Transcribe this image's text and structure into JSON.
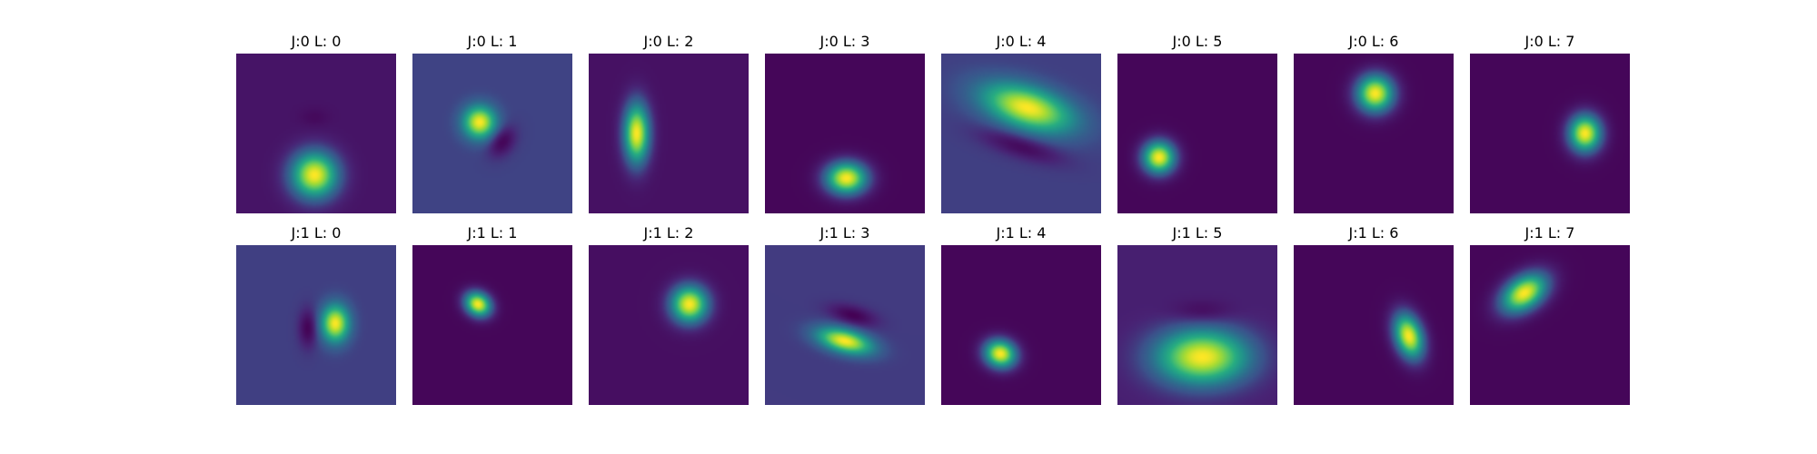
{
  "chart_data": {
    "type": "heatmap",
    "colormap": "viridis",
    "panels": [
      {
        "title": "J:0 L: 0",
        "background": 0.07,
        "blobs": [
          {
            "cx": 0.49,
            "cy": 0.76,
            "sx": 0.1,
            "sy": 0.1,
            "theta": 0,
            "amp": 0.93
          },
          {
            "cx": 0.49,
            "cy": 0.4,
            "sx": 0.06,
            "sy": 0.04,
            "theta": 0,
            "amp": -0.04
          }
        ]
      },
      {
        "title": "J:0 L: 1",
        "background": 0.21,
        "blobs": [
          {
            "cx": 0.42,
            "cy": 0.43,
            "sx": 0.07,
            "sy": 0.07,
            "theta": 0,
            "amp": 0.79
          },
          {
            "cx": 0.56,
            "cy": 0.55,
            "sx": 0.05,
            "sy": 0.07,
            "theta": 0.6,
            "amp": -0.21
          }
        ]
      },
      {
        "title": "J:0 L: 2",
        "background": 0.06,
        "blobs": [
          {
            "cx": 0.3,
            "cy": 0.5,
            "sx": 0.055,
            "sy": 0.13,
            "theta": 0,
            "amp": 0.94
          }
        ]
      },
      {
        "title": "J:0 L: 3",
        "background": 0.02,
        "blobs": [
          {
            "cx": 0.51,
            "cy": 0.78,
            "sx": 0.09,
            "sy": 0.07,
            "theta": 0,
            "amp": 0.98
          }
        ]
      },
      {
        "title": "J:0 L: 4",
        "background": 0.2,
        "blobs": [
          {
            "cx": 0.54,
            "cy": 0.34,
            "sx": 0.2,
            "sy": 0.09,
            "theta": 0.3,
            "amp": 0.8
          },
          {
            "cx": 0.5,
            "cy": 0.58,
            "sx": 0.18,
            "sy": 0.05,
            "theta": 0.3,
            "amp": -0.18
          }
        ]
      },
      {
        "title": "J:0 L: 5",
        "background": 0.02,
        "blobs": [
          {
            "cx": 0.26,
            "cy": 0.65,
            "sx": 0.07,
            "sy": 0.07,
            "theta": 0,
            "amp": 0.98
          }
        ]
      },
      {
        "title": "J:0 L: 6",
        "background": 0.02,
        "blobs": [
          {
            "cx": 0.51,
            "cy": 0.25,
            "sx": 0.08,
            "sy": 0.08,
            "theta": 0,
            "amp": 0.98
          }
        ]
      },
      {
        "title": "J:0 L: 7",
        "background": 0.02,
        "blobs": [
          {
            "cx": 0.72,
            "cy": 0.5,
            "sx": 0.07,
            "sy": 0.08,
            "theta": 0,
            "amp": 0.98
          }
        ]
      },
      {
        "title": "J:1 L: 0",
        "background": 0.2,
        "blobs": [
          {
            "cx": 0.62,
            "cy": 0.49,
            "sx": 0.06,
            "sy": 0.08,
            "theta": 0,
            "amp": 0.8
          },
          {
            "cx": 0.45,
            "cy": 0.52,
            "sx": 0.04,
            "sy": 0.08,
            "theta": 0,
            "amp": -0.2
          }
        ]
      },
      {
        "title": "J:1 L: 1",
        "background": 0.02,
        "blobs": [
          {
            "cx": 0.41,
            "cy": 0.37,
            "sx": 0.06,
            "sy": 0.05,
            "theta": 0.6,
            "amp": 0.98
          }
        ]
      },
      {
        "title": "J:1 L: 2",
        "background": 0.05,
        "blobs": [
          {
            "cx": 0.63,
            "cy": 0.37,
            "sx": 0.08,
            "sy": 0.08,
            "theta": 0,
            "amp": 0.95
          }
        ]
      },
      {
        "title": "J:1 L: 3",
        "background": 0.19,
        "blobs": [
          {
            "cx": 0.5,
            "cy": 0.6,
            "sx": 0.12,
            "sy": 0.05,
            "theta": 0.25,
            "amp": 0.81
          },
          {
            "cx": 0.55,
            "cy": 0.44,
            "sx": 0.1,
            "sy": 0.04,
            "theta": 0.25,
            "amp": -0.19
          }
        ]
      },
      {
        "title": "J:1 L: 4",
        "background": 0.02,
        "blobs": [
          {
            "cx": 0.37,
            "cy": 0.68,
            "sx": 0.07,
            "sy": 0.06,
            "theta": 0.3,
            "amp": 0.98
          }
        ]
      },
      {
        "title": "J:1 L: 5",
        "background": 0.11,
        "blobs": [
          {
            "cx": 0.53,
            "cy": 0.7,
            "sx": 0.2,
            "sy": 0.12,
            "theta": 0,
            "amp": 0.89
          },
          {
            "cx": 0.53,
            "cy": 0.42,
            "sx": 0.13,
            "sy": 0.05,
            "theta": 0,
            "amp": -0.1
          }
        ]
      },
      {
        "title": "J:1 L: 6",
        "background": 0.02,
        "blobs": [
          {
            "cx": 0.72,
            "cy": 0.57,
            "sx": 0.06,
            "sy": 0.1,
            "theta": -0.3,
            "amp": 0.98
          }
        ]
      },
      {
        "title": "J:1 L: 7",
        "background": 0.02,
        "blobs": [
          {
            "cx": 0.34,
            "cy": 0.3,
            "sx": 0.11,
            "sy": 0.07,
            "theta": -0.6,
            "amp": 0.98
          }
        ]
      }
    ]
  }
}
